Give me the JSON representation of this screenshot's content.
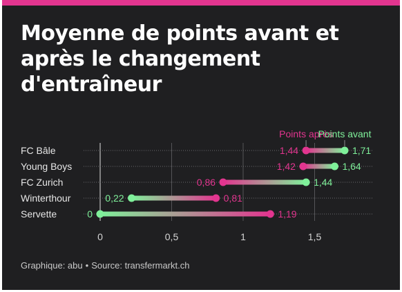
{
  "title": "Moyenne de points avant et après le changement d'entraîneur",
  "caption": {
    "chart_credit": "Graphique: abu",
    "separator": "•",
    "source": "Source: transfermarkt.ch"
  },
  "colors": {
    "background": "#1f1f21",
    "accent_bar": "#e2358f",
    "after": "#e2358f",
    "before": "#7ff09a",
    "text": "#ffffff",
    "muted": "#c9c9c9"
  },
  "chart_data": {
    "type": "dumbbell",
    "categories": [
      "FC Bâle",
      "Young Boys",
      "FC Zurich",
      "Winterthour",
      "Servette"
    ],
    "series": [
      {
        "name": "Points avant",
        "values": [
          1.71,
          1.64,
          1.44,
          0.22,
          0
        ],
        "labels": [
          "1,71",
          "1,64",
          "1,44",
          "0,22",
          "0"
        ]
      },
      {
        "name": "Points après",
        "values": [
          1.44,
          1.42,
          0.86,
          0.81,
          1.19
        ],
        "labels": [
          "1,44",
          "1,42",
          "0,86",
          "0,81",
          "1,19"
        ]
      }
    ],
    "xlim": [
      0,
      1.9
    ],
    "xticks": [
      0,
      0.5,
      1,
      1.5
    ],
    "xtick_labels": [
      "0",
      "0,5",
      "1",
      "1,5"
    ],
    "legend_placement": "top-right",
    "grid": true
  }
}
